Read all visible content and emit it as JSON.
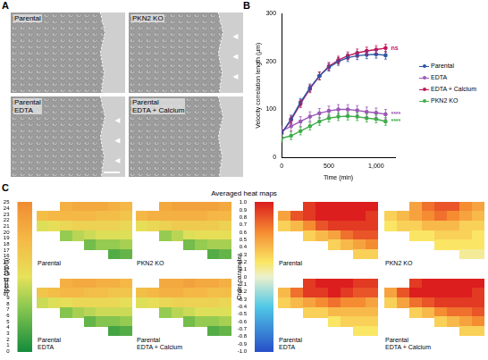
{
  "panel_a": {
    "label": "A",
    "images": [
      {
        "title": "Parental"
      },
      {
        "title": "PKN2 KO"
      },
      {
        "title": "Parental EDTA"
      },
      {
        "title": "Parental EDTA + Calcium"
      }
    ]
  },
  "chart_data": [
    {
      "panel": "B",
      "type": "line",
      "x_label": "Time (min)",
      "y_label": "Velocity correlation length (µm)",
      "x": [
        0,
        100,
        200,
        300,
        400,
        500,
        600,
        700,
        800,
        900,
        1000,
        1100
      ],
      "xlim": [
        0,
        1200
      ],
      "xticks": [
        0,
        500,
        1000
      ],
      "ylim": [
        0,
        300
      ],
      "yticks": [
        0,
        100,
        200,
        300
      ],
      "grid": false,
      "legend": "right",
      "series": [
        {
          "name": "Parental",
          "color": "#2e56a6",
          "marker": "circle",
          "values": [
            50,
            80,
            115,
            145,
            170,
            188,
            200,
            208,
            212,
            214,
            215,
            213
          ],
          "errors": [
            8,
            8,
            8,
            8,
            8,
            8,
            8,
            8,
            8,
            8,
            8,
            8
          ]
        },
        {
          "name": "EDTA",
          "color": "#9b59b6",
          "marker": "circle",
          "annotation": "****",
          "values": [
            55,
            65,
            75,
            85,
            92,
            97,
            100,
            100,
            98,
            95,
            93,
            90
          ],
          "errors": [
            10,
            10,
            10,
            10,
            10,
            10,
            10,
            10,
            10,
            10,
            10,
            10
          ]
        },
        {
          "name": "EDTA + Calcium",
          "color": "#c2185b",
          "marker": "circle",
          "annotation": "ns",
          "values": [
            50,
            78,
            112,
            143,
            170,
            190,
            203,
            212,
            218,
            222,
            225,
            228
          ],
          "errors": [
            8,
            8,
            8,
            8,
            8,
            8,
            8,
            8,
            8,
            8,
            8,
            8
          ]
        },
        {
          "name": "PKN2 KO",
          "color": "#3fae49",
          "marker": "circle",
          "annotation": "****",
          "values": [
            40,
            45,
            55,
            65,
            75,
            82,
            85,
            86,
            85,
            82,
            80,
            75
          ],
          "errors": [
            8,
            8,
            8,
            8,
            8,
            8,
            8,
            8,
            8,
            8,
            8,
            8
          ]
        }
      ]
    },
    {
      "panel": "C",
      "type": "heatmap",
      "title": "Averaged heat maps",
      "groups": [
        {
          "colorbar": {
            "title": "Speed (µm/h)",
            "range": [
              0,
              25
            ],
            "ticks": [
              0,
              1,
              2,
              3,
              4,
              5,
              6,
              7,
              8,
              9,
              10,
              11,
              12,
              13,
              14,
              15,
              16,
              17,
              18,
              19,
              20,
              21,
              22,
              23,
              24,
              25
            ]
          },
          "maps": [
            {
              "title": "Parental",
              "cells": [
                [
                  null,
                  null,
                  20,
                  21,
                  21,
                  21,
                  20,
                  19
                ],
                [
                  18,
                  19,
                  19,
                  19,
                  19,
                  18,
                  18,
                  17
                ],
                [
                  12,
                  13,
                  14,
                  15,
                  15,
                  15,
                  15,
                  14
                ],
                [
                  null,
                  null,
                  8,
                  10,
                  11,
                  12,
                  12,
                  12
                ],
                [
                  null,
                  null,
                  null,
                  null,
                  6,
                  8,
                  8,
                  9
                ],
                [
                  null,
                  null,
                  null,
                  null,
                  null,
                  null,
                  4,
                  5
                ]
              ]
            },
            {
              "title": "PKN2 KO",
              "cells": [
                [
                  null,
                  null,
                  21,
                  22,
                  22,
                  22,
                  22,
                  21
                ],
                [
                  19,
                  20,
                  20,
                  20,
                  20,
                  20,
                  19,
                  19
                ],
                [
                  13,
                  14,
                  15,
                  16,
                  16,
                  16,
                  16,
                  15
                ],
                [
                  null,
                  null,
                  8,
                  10,
                  12,
                  13,
                  13,
                  13
                ],
                [
                  null,
                  null,
                  null,
                  null,
                  6,
                  8,
                  9,
                  9
                ],
                [
                  null,
                  null,
                  null,
                  null,
                  null,
                  null,
                  4,
                  5
                ]
              ]
            },
            {
              "title": "Parental EDTA",
              "cells": [
                [
                  null,
                  null,
                  20,
                  21,
                  21,
                  20,
                  20,
                  19
                ],
                [
                  17,
                  18,
                  19,
                  19,
                  18,
                  18,
                  17,
                  17
                ],
                [
                  11,
                  12,
                  13,
                  14,
                  14,
                  14,
                  14,
                  13
                ],
                [
                  null,
                  null,
                  7,
                  9,
                  10,
                  11,
                  11,
                  11
                ],
                [
                  null,
                  null,
                  null,
                  null,
                  5,
                  7,
                  7,
                  8
                ],
                [
                  null,
                  null,
                  null,
                  null,
                  null,
                  null,
                  3,
                  4
                ]
              ]
            },
            {
              "title": "Parental EDTA + Calcium",
              "cells": [
                [
                  null,
                  null,
                  21,
                  21,
                  22,
                  21,
                  21,
                  20
                ],
                [
                  18,
                  19,
                  20,
                  20,
                  19,
                  19,
                  18,
                  18
                ],
                [
                  12,
                  13,
                  14,
                  15,
                  15,
                  15,
                  15,
                  14
                ],
                [
                  null,
                  null,
                  8,
                  10,
                  11,
                  12,
                  12,
                  12
                ],
                [
                  null,
                  null,
                  null,
                  null,
                  6,
                  8,
                  8,
                  9
                ],
                [
                  null,
                  null,
                  null,
                  null,
                  null,
                  null,
                  4,
                  5
                ]
              ]
            }
          ]
        },
        {
          "colorbar": {
            "title": "Order parameter",
            "range": [
              -1,
              1
            ],
            "ticks": [
              -1,
              -0.9,
              -0.8,
              -0.7,
              -0.6,
              -0.5,
              -0.4,
              -0.3,
              -0.2,
              -0.1,
              0,
              0.1,
              0.2,
              0.3,
              0.4,
              0.5,
              0.6,
              0.7,
              0.8,
              0.9,
              1
            ]
          },
          "maps": [
            {
              "title": "Parental",
              "cells": [
                [
                  null,
                  null,
                  0.9,
                  1,
                  1,
                  1,
                  1,
                  1
                ],
                [
                  0.5,
                  0.8,
                  0.9,
                  1,
                  1,
                  1,
                  1,
                  0.9
                ],
                [
                  0.3,
                  0.4,
                  0.6,
                  0.8,
                  0.9,
                  0.9,
                  0.9,
                  0.9
                ],
                [
                  null,
                  null,
                  0.3,
                  0.4,
                  0.5,
                  0.7,
                  0.8,
                  0.8
                ],
                [
                  null,
                  null,
                  null,
                  null,
                  0.3,
                  0.4,
                  0.5,
                  0.6
                ],
                [
                  null,
                  null,
                  null,
                  null,
                  null,
                  null,
                  0.3,
                  0.3
                ]
              ]
            },
            {
              "title": "PKN2 KO",
              "cells": [
                [
                  null,
                  null,
                  0.5,
                  0.7,
                  0.8,
                  0.8,
                  0.6,
                  0.5
                ],
                [
                  0.3,
                  0.4,
                  0.5,
                  0.6,
                  0.7,
                  0.6,
                  0.5,
                  0.4
                ],
                [
                  0.2,
                  0.3,
                  0.3,
                  0.4,
                  0.4,
                  0.4,
                  0.3,
                  0.3
                ],
                [
                  null,
                  null,
                  0.2,
                  0.2,
                  0.3,
                  0.3,
                  0.3,
                  0.2
                ],
                [
                  null,
                  null,
                  null,
                  null,
                  0.2,
                  0.2,
                  0.2,
                  0.2
                ],
                [
                  null,
                  null,
                  null,
                  null,
                  null,
                  null,
                  0.1,
                  0.1
                ]
              ]
            },
            {
              "title": "Parental EDTA",
              "cells": [
                [
                  null,
                  null,
                  0.9,
                  1,
                  1,
                  1,
                  0.9,
                  0.9
                ],
                [
                  0.4,
                  0.7,
                  0.9,
                  0.9,
                  1,
                  0.9,
                  0.8,
                  0.8
                ],
                [
                  0.3,
                  0.4,
                  0.5,
                  0.6,
                  0.7,
                  0.6,
                  0.6,
                  0.5
                ],
                [
                  null,
                  null,
                  0.3,
                  0.3,
                  0.4,
                  0.4,
                  0.4,
                  0.4
                ],
                [
                  null,
                  null,
                  null,
                  null,
                  0.2,
                  0.3,
                  0.3,
                  0.3
                ],
                [
                  null,
                  null,
                  null,
                  null,
                  null,
                  null,
                  0.2,
                  0.2
                ]
              ]
            },
            {
              "title": "Parental EDTA + Calcium",
              "cells": [
                [
                  null,
                  null,
                  0.9,
                  1,
                  1,
                  1,
                  1,
                  1
                ],
                [
                  0.5,
                  0.8,
                  1,
                  1,
                  1,
                  1,
                  1,
                  0.9
                ],
                [
                  0.3,
                  0.5,
                  0.7,
                  0.8,
                  0.9,
                  0.9,
                  0.9,
                  0.9
                ],
                [
                  null,
                  null,
                  0.3,
                  0.4,
                  0.6,
                  0.7,
                  0.7,
                  0.8
                ],
                [
                  null,
                  null,
                  null,
                  null,
                  0.3,
                  0.4,
                  0.5,
                  0.6
                ],
                [
                  null,
                  null,
                  null,
                  null,
                  null,
                  null,
                  0.3,
                  0.3
                ]
              ]
            }
          ]
        }
      ]
    }
  ]
}
